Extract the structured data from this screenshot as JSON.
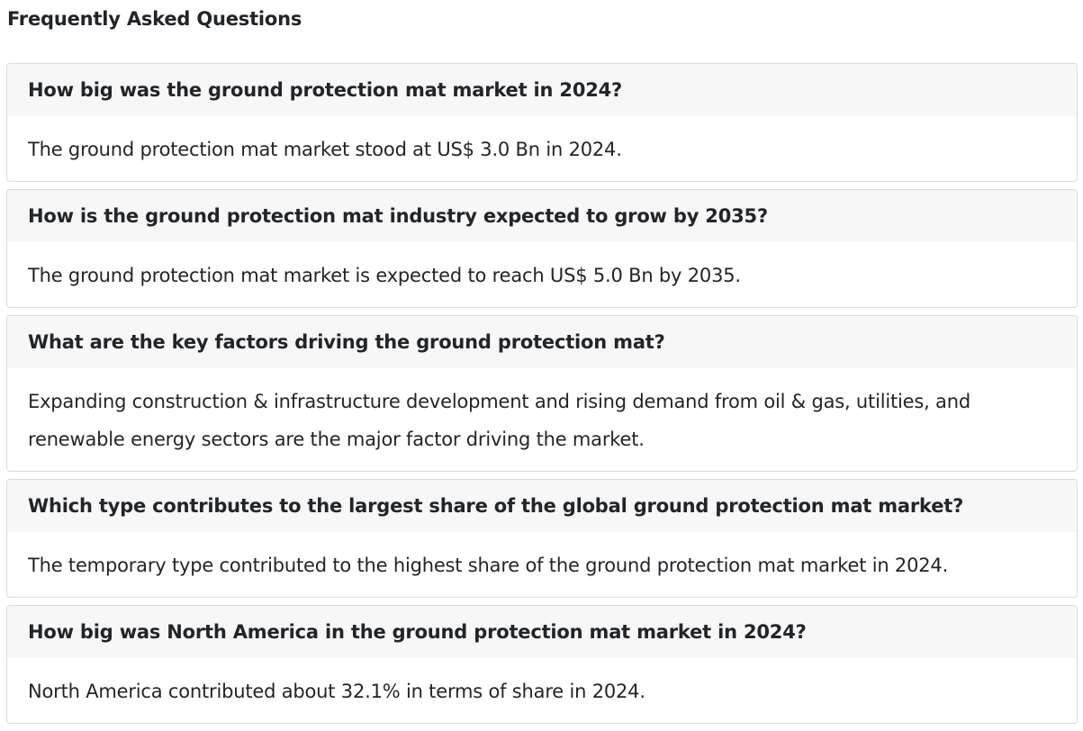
{
  "page": {
    "title": "Frequently Asked Questions"
  },
  "faq": [
    {
      "question": "How big was the ground protection mat market in 2024?",
      "answer": "The ground protection mat market stood at US$ 3.0 Bn in 2024."
    },
    {
      "question": "How is the ground protection mat industry expected to grow by 2035?",
      "answer": "The ground protection mat market is expected to reach US$ 5.0 Bn by 2035."
    },
    {
      "question": "What are the key factors driving the ground protection mat?",
      "answer": "Expanding construction & infrastructure development and rising demand from oil & gas, utilities, and renewable energy sectors are the major factor driving the market."
    },
    {
      "question": "Which type contributes to the largest share of the global ground protection mat market?",
      "answer": "The temporary type contributed to the highest share of the ground protection mat market in 2024."
    },
    {
      "question": "How big was North America in the ground protection mat market in 2024?",
      "answer": "North America contributed about 32.1% in terms of share in 2024."
    }
  ]
}
